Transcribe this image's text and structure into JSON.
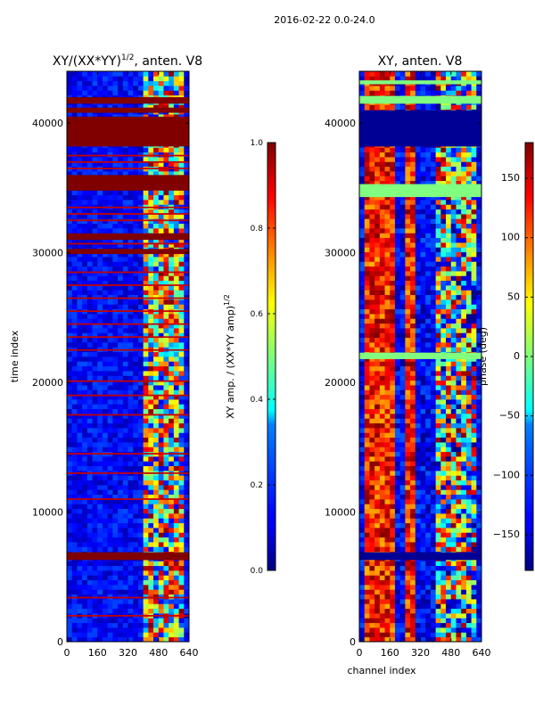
{
  "figure_title": "2016-02-22 0.0-24.0",
  "chart_data": [
    {
      "type": "heatmap",
      "title": "XY/(XX*YY)",
      "title_exponent": "1/2",
      "title_suffix": ", anten. V8",
      "xlabel": "",
      "ylabel": "time index",
      "xlim": [
        0,
        640
      ],
      "ylim": [
        0,
        44000
      ],
      "xticks": [
        0,
        160,
        320,
        480,
        640
      ],
      "yticks": [
        0,
        10000,
        20000,
        30000,
        40000
      ],
      "colorbar": {
        "label": "XY amp. / (XX*YY amp)",
        "label_exponent": "1/2",
        "range": [
          0.0,
          1.0
        ],
        "ticks": [
          0.0,
          0.2,
          0.4,
          0.6,
          0.8,
          1.0
        ],
        "tick_labels": [
          "0.0",
          "0.2",
          "0.4",
          "0.6",
          "0.8",
          "1.0"
        ],
        "colormap": "jet"
      },
      "background_value": 0.1,
      "active_channel_range": [
        400,
        600
      ],
      "saturated_bands": [
        [
          6300,
          6900
        ],
        [
          29900,
          30300
        ],
        [
          31000,
          31500
        ],
        [
          34800,
          36000
        ],
        [
          38200,
          40500
        ],
        [
          40800,
          41200
        ],
        [
          41500,
          42000
        ]
      ],
      "thin_saturated_lines": [
        2000,
        3400,
        11000,
        13000,
        14500,
        17500,
        19000,
        20100,
        22500,
        23500,
        24500,
        25500,
        26500,
        27500,
        28500,
        30700,
        32500,
        33000,
        33500,
        36500,
        37000,
        37500
      ]
    },
    {
      "type": "heatmap",
      "title": "XY, anten. V8",
      "xlabel": "channel index",
      "ylabel": "",
      "xlim": [
        0,
        640
      ],
      "ylim": [
        0,
        44000
      ],
      "xticks": [
        0,
        160,
        320,
        480,
        640
      ],
      "yticks": [
        0,
        10000,
        20000,
        30000,
        40000
      ],
      "colorbar": {
        "label": "phase (deg)",
        "range": [
          -180,
          180
        ],
        "ticks": [
          -150,
          -100,
          -50,
          0,
          50,
          100,
          150
        ],
        "tick_labels": [
          "−150",
          "−100",
          "−50",
          "0",
          "50",
          "100",
          "150"
        ],
        "colormap": "jet"
      },
      "background_value": -160,
      "mid_value_bands": [
        [
          34300,
          35300
        ],
        [
          21800,
          22300
        ],
        [
          41500,
          42100
        ],
        [
          43000,
          43300
        ]
      ],
      "dark_bands": [
        [
          6300,
          6900
        ],
        [
          38200,
          41000
        ]
      ],
      "vertical_stripe_channels": [
        50,
        100,
        130,
        160,
        250
      ]
    }
  ]
}
